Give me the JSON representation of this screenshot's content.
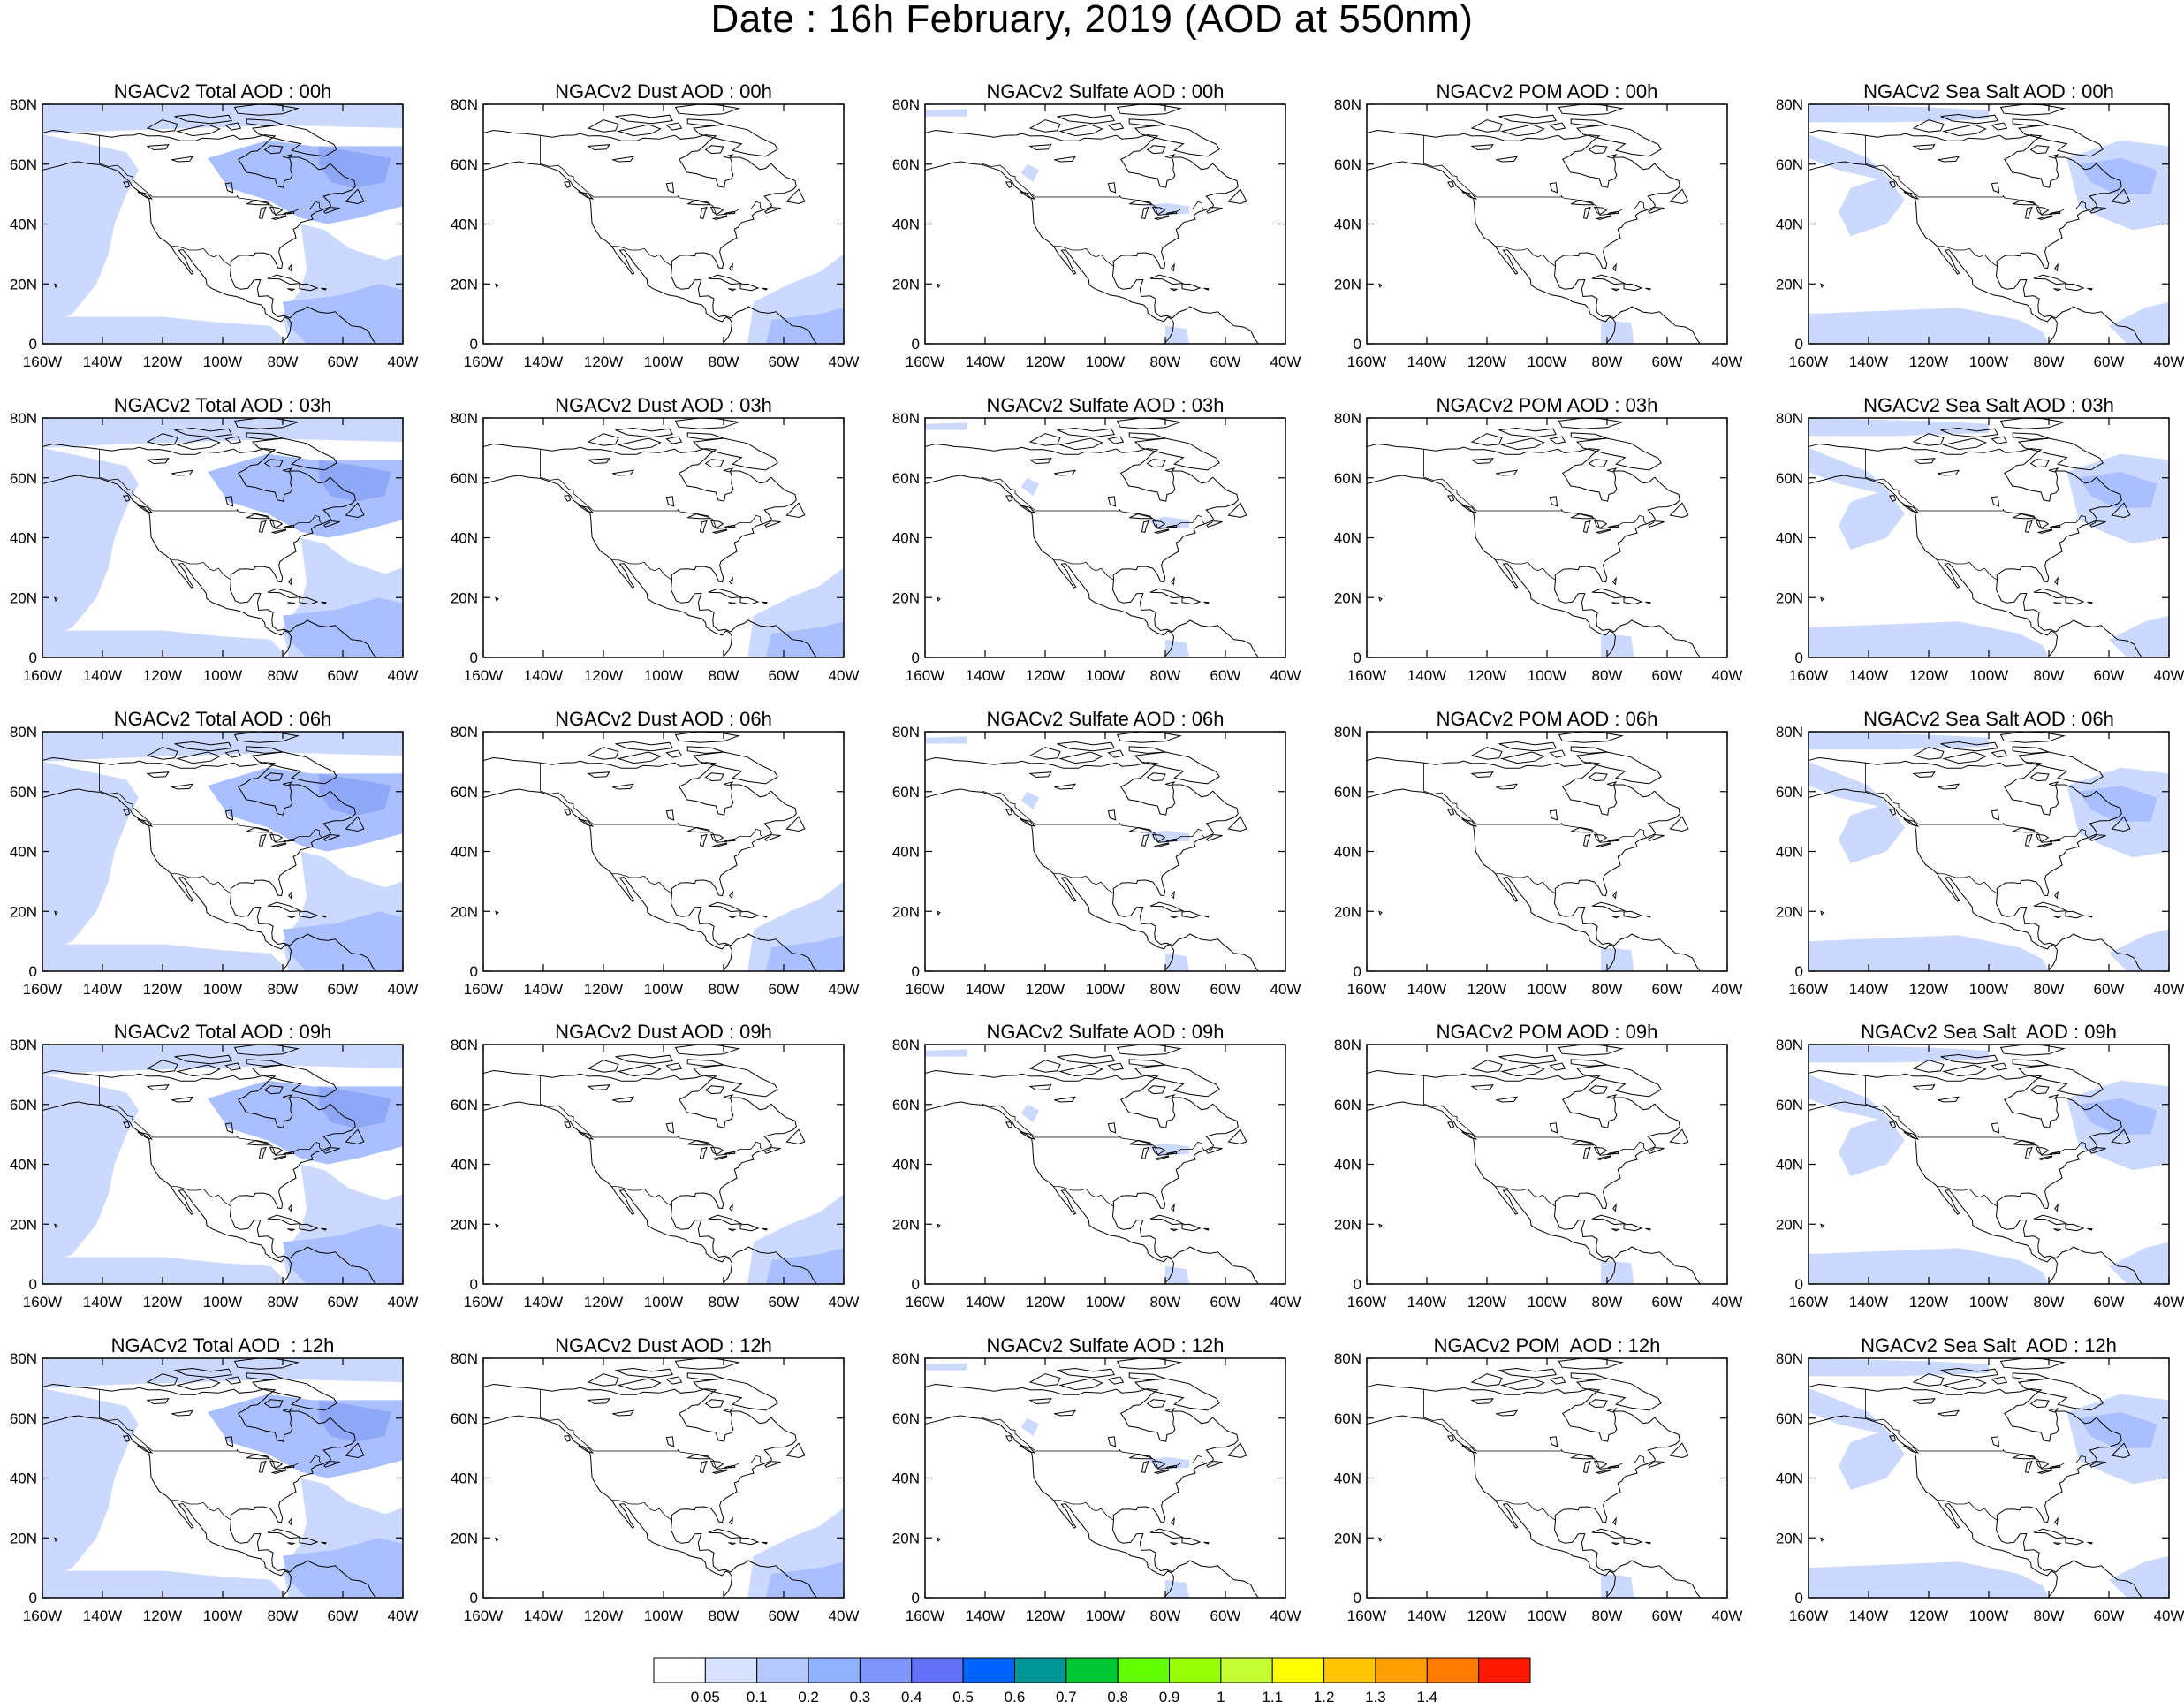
{
  "title": "Date : 16h February, 2019 (AOD at 550nm)",
  "map_extent": {
    "lon_min": -160,
    "lon_max": -40,
    "lat_min": 0,
    "lat_max": 80
  },
  "lat_ticks": [
    "80N",
    "60N",
    "40N",
    "20N",
    "0"
  ],
  "lon_ticks": [
    "160W",
    "140W",
    "120W",
    "100W",
    "80W",
    "60W",
    "40W"
  ],
  "species": [
    "Total",
    "Dust",
    "Sulfate",
    "POM",
    "Sea Salt"
  ],
  "hours": [
    "00h",
    "03h",
    "06h",
    "09h",
    "12h"
  ],
  "panel_titles": [
    [
      "NGACv2 Total AOD : 00h",
      "NGACv2 Dust AOD : 00h",
      "NGACv2 Sulfate AOD : 00h",
      "NGACv2 POM AOD : 00h",
      "NGACv2 Sea Salt AOD : 00h"
    ],
    [
      "NGACv2 Total AOD : 03h",
      "NGACv2 Dust AOD : 03h",
      "NGACv2 Sulfate AOD : 03h",
      "NGACv2 POM AOD : 03h",
      "NGACv2 Sea Salt AOD : 03h"
    ],
    [
      "NGACv2 Total AOD : 06h",
      "NGACv2 Dust AOD : 06h",
      "NGACv2 Sulfate AOD : 06h",
      "NGACv2 POM AOD : 06h",
      "NGACv2 Sea Salt AOD : 06h"
    ],
    [
      "NGACv2 Total AOD : 09h",
      "NGACv2 Dust AOD : 09h",
      "NGACv2 Sulfate AOD : 09h",
      "NGACv2 POM AOD : 09h",
      "NGACv2 Sea Salt  AOD : 09h"
    ],
    [
      "NGACv2 Total AOD  : 12h",
      "NGACv2 Dust AOD : 12h",
      "NGACv2 Sulfate AOD : 12h",
      "NGACv2 POM  AOD : 12h",
      "NGACv2 Sea Salt  AOD : 12h"
    ]
  ],
  "colorbar": {
    "labels": [
      "0.05",
      "0.1",
      "0.2",
      "0.3",
      "0.4",
      "0.5",
      "0.6",
      "0.7",
      "0.8",
      "0.9",
      "1",
      "1.1",
      "1.2",
      "1.3",
      "1.4"
    ],
    "colors": [
      "#ffffff",
      "#d6e2ff",
      "#b5c9ff",
      "#8fb2ff",
      "#7f96ff",
      "#6370f8",
      "#0063ff",
      "#009696",
      "#00c633",
      "#63ff00",
      "#96ff00",
      "#c6ff33",
      "#ffff00",
      "#ffc600",
      "#ffa000",
      "#ff7c00",
      "#ff1900"
    ]
  },
  "colors": {
    "light_aod": "#ccd9ff",
    "medium_aod": "#aabfff",
    "high_aod": "#8ea8f7"
  }
}
